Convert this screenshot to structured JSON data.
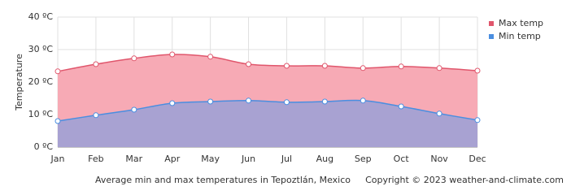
{
  "chart_data": {
    "type": "area",
    "y_label": "Temperature",
    "caption": "Average min and max temperatures in Tepoztlán, Mexico",
    "copyright": "Copyright © 2023  weather-and-climate.com",
    "categories": [
      "Jan",
      "Feb",
      "Mar",
      "Apr",
      "May",
      "Jun",
      "Jul",
      "Aug",
      "Sep",
      "Oct",
      "Nov",
      "Dec"
    ],
    "series": [
      {
        "name": "Max temp",
        "color": "#e0566c",
        "fill": "#f7aab5",
        "values": [
          23.3,
          25.5,
          27.3,
          28.5,
          27.8,
          25.5,
          25,
          25,
          24.3,
          24.8,
          24.3,
          23.5
        ]
      },
      {
        "name": "Min temp",
        "color": "#4a8ee0",
        "fill": "#a8a2d2",
        "values": [
          8,
          9.8,
          11.5,
          13.5,
          14,
          14.3,
          13.8,
          14,
          14.3,
          12.5,
          10.3,
          8.3
        ]
      }
    ],
    "ylim": [
      0,
      40
    ],
    "yticks": [
      {
        "value": 0,
        "label": "0 ºC"
      },
      {
        "value": 10,
        "label": "10 ºC"
      },
      {
        "value": 20,
        "label": "20 ºC"
      },
      {
        "value": 30,
        "label": "30 ºC"
      },
      {
        "value": 40,
        "label": "40 ºC"
      }
    ],
    "grid": true,
    "legend": "top-right"
  }
}
